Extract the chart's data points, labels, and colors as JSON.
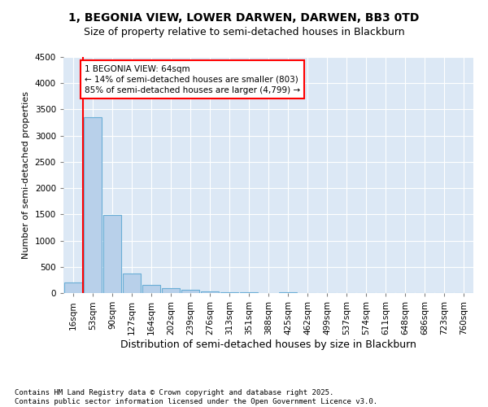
{
  "title1": "1, BEGONIA VIEW, LOWER DARWEN, DARWEN, BB3 0TD",
  "title2": "Size of property relative to semi-detached houses in Blackburn",
  "xlabel": "Distribution of semi-detached houses by size in Blackburn",
  "ylabel": "Number of semi-detached properties",
  "categories": [
    "16sqm",
    "53sqm",
    "90sqm",
    "127sqm",
    "164sqm",
    "202sqm",
    "239sqm",
    "276sqm",
    "313sqm",
    "351sqm",
    "388sqm",
    "425sqm",
    "462sqm",
    "499sqm",
    "537sqm",
    "574sqm",
    "611sqm",
    "648sqm",
    "686sqm",
    "723sqm",
    "760sqm"
  ],
  "values": [
    200,
    3350,
    1490,
    380,
    150,
    100,
    60,
    30,
    10,
    10,
    0,
    10,
    0,
    0,
    0,
    0,
    0,
    0,
    0,
    0,
    0
  ],
  "bar_color": "#b8d0ea",
  "bar_edge_color": "#6aaed6",
  "annotation_text": "1 BEGONIA VIEW: 64sqm\n← 14% of semi-detached houses are smaller (803)\n85% of semi-detached houses are larger (4,799) →",
  "ylim": [
    0,
    4500
  ],
  "yticks": [
    0,
    500,
    1000,
    1500,
    2000,
    2500,
    3000,
    3500,
    4000,
    4500
  ],
  "bg_color": "#dce8f5",
  "footer1": "Contains HM Land Registry data © Crown copyright and database right 2025.",
  "footer2": "Contains public sector information licensed under the Open Government Licence v3.0.",
  "title_fontsize": 10,
  "subtitle_fontsize": 9,
  "ylabel_fontsize": 8,
  "xlabel_fontsize": 9,
  "tick_fontsize": 7.5,
  "footer_fontsize": 6.5
}
